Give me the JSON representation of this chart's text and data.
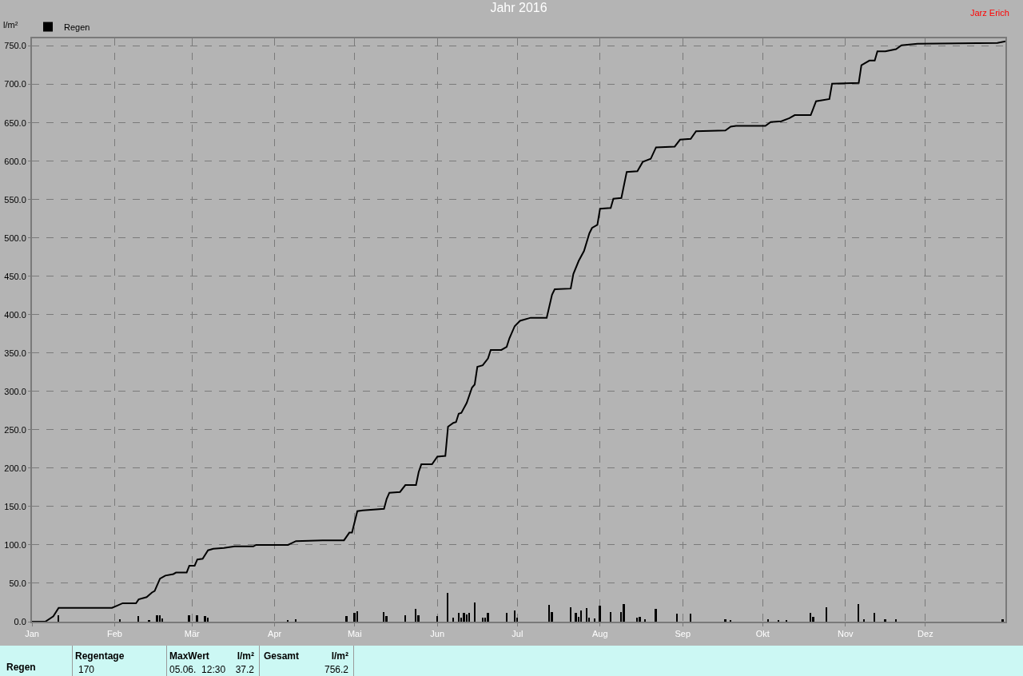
{
  "chart_data": {
    "type": "bar",
    "title": "Jahr 2016",
    "ylabel": "l/m²",
    "annotations": [
      "Jarz Erich",
      "Regen",
      "Regentage",
      "170",
      "MaxWert",
      "l/m²",
      "05.06.  12:30",
      "37.2",
      "Gesamt",
      "l/m²",
      "756.2"
    ],
    "xlim": [
      "2016-01-01",
      "2016-12-31"
    ],
    "xticks": [
      {
        "value": "2016-01-01",
        "label": "Jan"
      },
      {
        "value": "2016-02-01",
        "label": "Feb"
      },
      {
        "value": "2016-03-01",
        "label": "Mär"
      },
      {
        "value": "2016-04-01",
        "label": "Apr"
      },
      {
        "value": "2016-05-01",
        "label": "Mai"
      },
      {
        "value": "2016-06-01",
        "label": "Jun"
      },
      {
        "value": "2016-07-01",
        "label": "Jul"
      },
      {
        "value": "2016-08-01",
        "label": "Aug"
      },
      {
        "value": "2016-09-01",
        "label": "Sep"
      },
      {
        "value": "2016-10-01",
        "label": "Okt"
      },
      {
        "value": "2016-11-01",
        "label": "Nov"
      },
      {
        "value": "2016-12-01",
        "label": "Dez"
      }
    ],
    "ylim": [
      0,
      760
    ],
    "yticks": [
      {
        "value": 0,
        "label": "0.0"
      },
      {
        "value": 50,
        "label": "50.0"
      },
      {
        "value": 100,
        "label": "100.0"
      },
      {
        "value": 150,
        "label": "150.0"
      },
      {
        "value": 200,
        "label": "200.0"
      },
      {
        "value": 250,
        "label": "250.0"
      },
      {
        "value": 300,
        "label": "300.0"
      },
      {
        "value": 350,
        "label": "350.0"
      },
      {
        "value": 400,
        "label": "400.0"
      },
      {
        "value": 450,
        "label": "450.0"
      },
      {
        "value": 500,
        "label": "500.0"
      },
      {
        "value": 550,
        "label": "550.0"
      },
      {
        "value": 600,
        "label": "600.0"
      },
      {
        "value": 650,
        "label": "650.0"
      },
      {
        "value": 700,
        "label": "700.0"
      },
      {
        "value": 750,
        "label": "750.0"
      }
    ],
    "grid": true,
    "legend": "top left",
    "series": [
      {
        "name": "Regen",
        "color": "#000000",
        "x": [
          "2016-01-11",
          "2016-02-03",
          "2016-02-10",
          "2016-02-14",
          "2016-02-17",
          "2016-02-18",
          "2016-02-19",
          "2016-02-29",
          "2016-03-03",
          "2016-03-06",
          "2016-03-07",
          "2016-04-06",
          "2016-04-09",
          "2016-04-28",
          "2016-05-01",
          "2016-05-02",
          "2016-05-12",
          "2016-05-13",
          "2016-05-20",
          "2016-05-24",
          "2016-05-25",
          "2016-06-01",
          "2016-06-05",
          "2016-06-07",
          "2016-06-09",
          "2016-06-10",
          "2016-06-11",
          "2016-06-12",
          "2016-06-13",
          "2016-06-15",
          "2016-06-18",
          "2016-06-19",
          "2016-06-20",
          "2016-06-27",
          "2016-06-30",
          "2016-07-01",
          "2016-07-13",
          "2016-07-14",
          "2016-07-21",
          "2016-07-23",
          "2016-07-24",
          "2016-07-25",
          "2016-07-27",
          "2016-07-28",
          "2016-07-30",
          "2016-08-01",
          "2016-08-05",
          "2016-08-09",
          "2016-08-10",
          "2016-08-15",
          "2016-08-16",
          "2016-08-18",
          "2016-08-22",
          "2016-08-30",
          "2016-09-04",
          "2016-09-17",
          "2016-09-19",
          "2016-10-03",
          "2016-10-07",
          "2016-10-10",
          "2016-10-19",
          "2016-10-20",
          "2016-10-25",
          "2016-11-06",
          "2016-11-08",
          "2016-11-12",
          "2016-11-16",
          "2016-11-20",
          "2016-12-30"
        ],
        "values": [
          8,
          3,
          7,
          2,
          8,
          8,
          4,
          8,
          8,
          7,
          5,
          2,
          3,
          7,
          11,
          14,
          12,
          7,
          8,
          17,
          8,
          7,
          37.2,
          5,
          11,
          5,
          11,
          9,
          11,
          25,
          5,
          5,
          11,
          11,
          15,
          5,
          22,
          13,
          19,
          11,
          6,
          15,
          18,
          5,
          4,
          21,
          13,
          13,
          23,
          5,
          6,
          3,
          17,
          10,
          10,
          3,
          2,
          3,
          2,
          2,
          11,
          6,
          19,
          23,
          3,
          11,
          3,
          3,
          3
        ]
      },
      {
        "type": "line",
        "color": "#000000",
        "x": [
          "2016-01-01",
          "2016-01-06",
          "2016-01-09",
          "2016-01-11",
          "2016-01-31",
          "2016-02-02",
          "2016-02-04",
          "2016-02-09",
          "2016-02-10",
          "2016-02-13",
          "2016-02-15",
          "2016-02-16",
          "2016-02-18",
          "2016-02-20",
          "2016-02-23",
          "2016-02-24",
          "2016-02-28",
          "2016-02-29",
          "2016-03-02",
          "2016-03-03",
          "2016-03-05",
          "2016-03-07",
          "2016-03-09",
          "2016-03-13",
          "2016-03-17",
          "2016-03-24",
          "2016-03-25",
          "2016-04-06",
          "2016-04-09",
          "2016-04-19",
          "2016-04-27",
          "2016-04-29",
          "2016-04-30",
          "2016-05-02",
          "2016-05-04",
          "2016-05-12",
          "2016-05-13",
          "2016-05-14",
          "2016-05-18",
          "2016-05-20",
          "2016-05-24",
          "2016-05-25",
          "2016-05-26",
          "2016-05-30",
          "2016-06-01",
          "2016-06-04",
          "2016-06-05",
          "2016-06-07",
          "2016-06-08",
          "2016-06-09",
          "2016-06-10",
          "2016-06-12",
          "2016-06-14",
          "2016-06-15",
          "2016-06-16",
          "2016-06-18",
          "2016-06-20",
          "2016-06-21",
          "2016-06-25",
          "2016-06-27",
          "2016-06-28",
          "2016-06-30",
          "2016-07-02",
          "2016-07-06",
          "2016-07-12",
          "2016-07-14",
          "2016-07-15",
          "2016-07-21",
          "2016-07-22",
          "2016-07-24",
          "2016-07-26",
          "2016-07-28",
          "2016-07-29",
          "2016-07-31",
          "2016-08-01",
          "2016-08-05",
          "2016-08-06",
          "2016-08-09",
          "2016-08-11",
          "2016-08-15",
          "2016-08-17",
          "2016-08-20",
          "2016-08-22",
          "2016-08-29",
          "2016-08-31",
          "2016-09-04",
          "2016-09-06",
          "2016-09-17",
          "2016-09-19",
          "2016-09-21",
          "2016-10-02",
          "2016-10-04",
          "2016-10-08",
          "2016-10-11",
          "2016-10-13",
          "2016-10-19",
          "2016-10-21",
          "2016-10-26",
          "2016-10-27",
          "2016-11-06",
          "2016-11-07",
          "2016-11-10",
          "2016-11-12",
          "2016-11-13",
          "2016-11-16",
          "2016-11-20",
          "2016-11-22",
          "2016-11-28",
          "2016-12-28",
          "2016-12-31"
        ],
        "values": [
          0,
          0,
          7,
          18,
          18,
          21,
          24,
          24,
          29,
          32,
          38,
          40,
          56,
          60,
          62,
          64,
          64,
          73,
          73,
          81,
          82,
          93,
          95,
          96,
          98,
          98,
          100,
          100,
          105,
          106,
          106,
          116,
          116,
          144,
          145,
          147,
          160,
          168,
          169,
          178,
          178,
          195,
          205,
          205,
          215,
          216,
          254,
          259,
          260,
          271,
          272,
          285,
          305,
          309,
          332,
          334,
          343,
          354,
          354,
          358,
          369,
          385,
          392,
          396,
          396,
          426,
          433,
          434,
          453,
          470,
          483,
          506,
          513,
          517,
          538,
          539,
          551,
          552,
          586,
          587,
          599,
          603,
          618,
          619,
          628,
          629,
          639,
          640,
          645,
          646,
          646,
          651,
          652,
          656,
          660,
          660,
          678,
          681,
          701,
          702,
          725,
          731,
          731,
          743,
          743,
          746,
          751,
          753,
          754,
          756
        ]
      }
    ]
  }
}
